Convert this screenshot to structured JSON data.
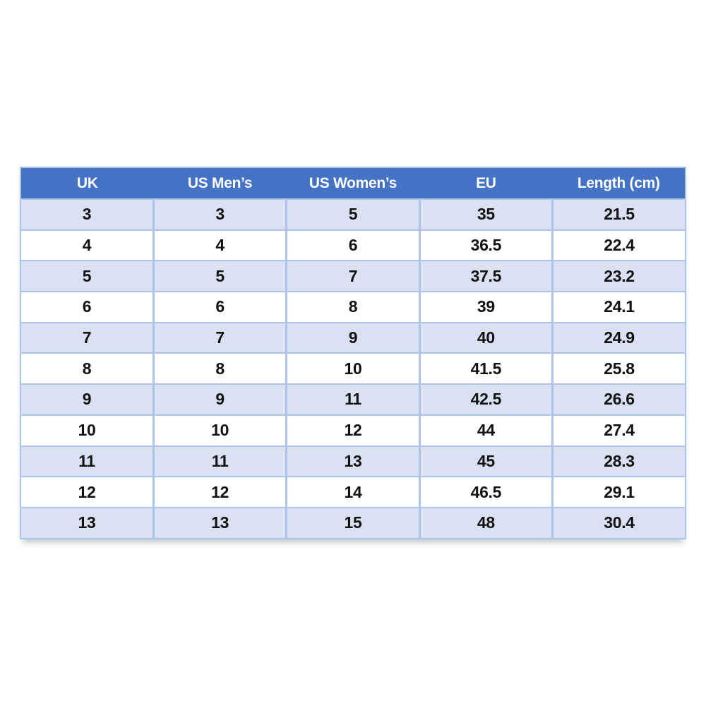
{
  "chart_data": {
    "type": "table",
    "columns": [
      "UK",
      "US Men’s",
      "US Women’s",
      "EU",
      "Length (cm)"
    ],
    "rows": [
      [
        "3",
        "3",
        "5",
        "35",
        "21.5"
      ],
      [
        "4",
        "4",
        "6",
        "36.5",
        "22.4"
      ],
      [
        "5",
        "5",
        "7",
        "37.5",
        "23.2"
      ],
      [
        "6",
        "6",
        "8",
        "39",
        "24.1"
      ],
      [
        "7",
        "7",
        "9",
        "40",
        "24.9"
      ],
      [
        "8",
        "8",
        "10",
        "41.5",
        "25.8"
      ],
      [
        "9",
        "9",
        "11",
        "42.5",
        "26.6"
      ],
      [
        "10",
        "10",
        "12",
        "44",
        "27.4"
      ],
      [
        "11",
        "11",
        "13",
        "45",
        "28.3"
      ],
      [
        "12",
        "12",
        "14",
        "46.5",
        "29.1"
      ],
      [
        "13",
        "13",
        "15",
        "48",
        "30.4"
      ]
    ]
  },
  "colors": {
    "page_bg": "#FFFFFF",
    "header_bg": "#4472C4",
    "header_text": "#FFFFFF",
    "row_alt_bg": "#D9E1F2",
    "row_bg": "#FFFFFF",
    "border": "#AEC3E8",
    "cell_text": "#121212"
  }
}
